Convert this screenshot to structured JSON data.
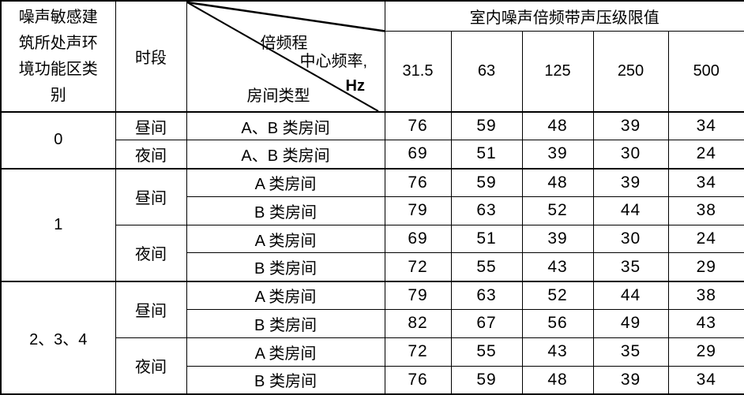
{
  "colors": {
    "background": "#ffffff",
    "border": "#000000",
    "text": "#000000"
  },
  "table": {
    "header": {
      "category_label": "噪声敏感建筑所处声环境功能区类别",
      "period_label": "时段",
      "diagonal": {
        "line1": "倍频程",
        "line2": "中心频率,",
        "line3": "Hz",
        "bottom": "房间类型"
      },
      "group_label": "室内噪声倍频带声压级限值",
      "frequencies": [
        "31.5",
        "63",
        "125",
        "250",
        "500"
      ]
    },
    "sections": [
      {
        "category": "0",
        "periods": [
          {
            "period": "昼间",
            "rooms": [
              {
                "room": "A、B 类房间",
                "values": [
                  76,
                  59,
                  48,
                  39,
                  34
                ]
              }
            ]
          },
          {
            "period": "夜间",
            "rooms": [
              {
                "room": "A、B 类房间",
                "values": [
                  69,
                  51,
                  39,
                  30,
                  24
                ]
              }
            ]
          }
        ]
      },
      {
        "category": "1",
        "periods": [
          {
            "period": "昼间",
            "rooms": [
              {
                "room": "A 类房间",
                "values": [
                  76,
                  59,
                  48,
                  39,
                  34
                ]
              },
              {
                "room": "B 类房间",
                "values": [
                  79,
                  63,
                  52,
                  44,
                  38
                ]
              }
            ]
          },
          {
            "period": "夜间",
            "rooms": [
              {
                "room": "A 类房间",
                "values": [
                  69,
                  51,
                  39,
                  30,
                  24
                ]
              },
              {
                "room": "B 类房间",
                "values": [
                  72,
                  55,
                  43,
                  35,
                  29
                ]
              }
            ]
          }
        ]
      },
      {
        "category": "2、3、4",
        "periods": [
          {
            "period": "昼间",
            "rooms": [
              {
                "room": "A 类房间",
                "values": [
                  79,
                  63,
                  52,
                  44,
                  38
                ]
              },
              {
                "room": "B 类房间",
                "values": [
                  82,
                  67,
                  56,
                  49,
                  43
                ]
              }
            ]
          },
          {
            "period": "夜间",
            "rooms": [
              {
                "room": "A 类房间",
                "values": [
                  72,
                  55,
                  43,
                  35,
                  29
                ]
              },
              {
                "room": "B 类房间",
                "values": [
                  76,
                  59,
                  48,
                  39,
                  34
                ]
              }
            ]
          }
        ]
      }
    ]
  }
}
